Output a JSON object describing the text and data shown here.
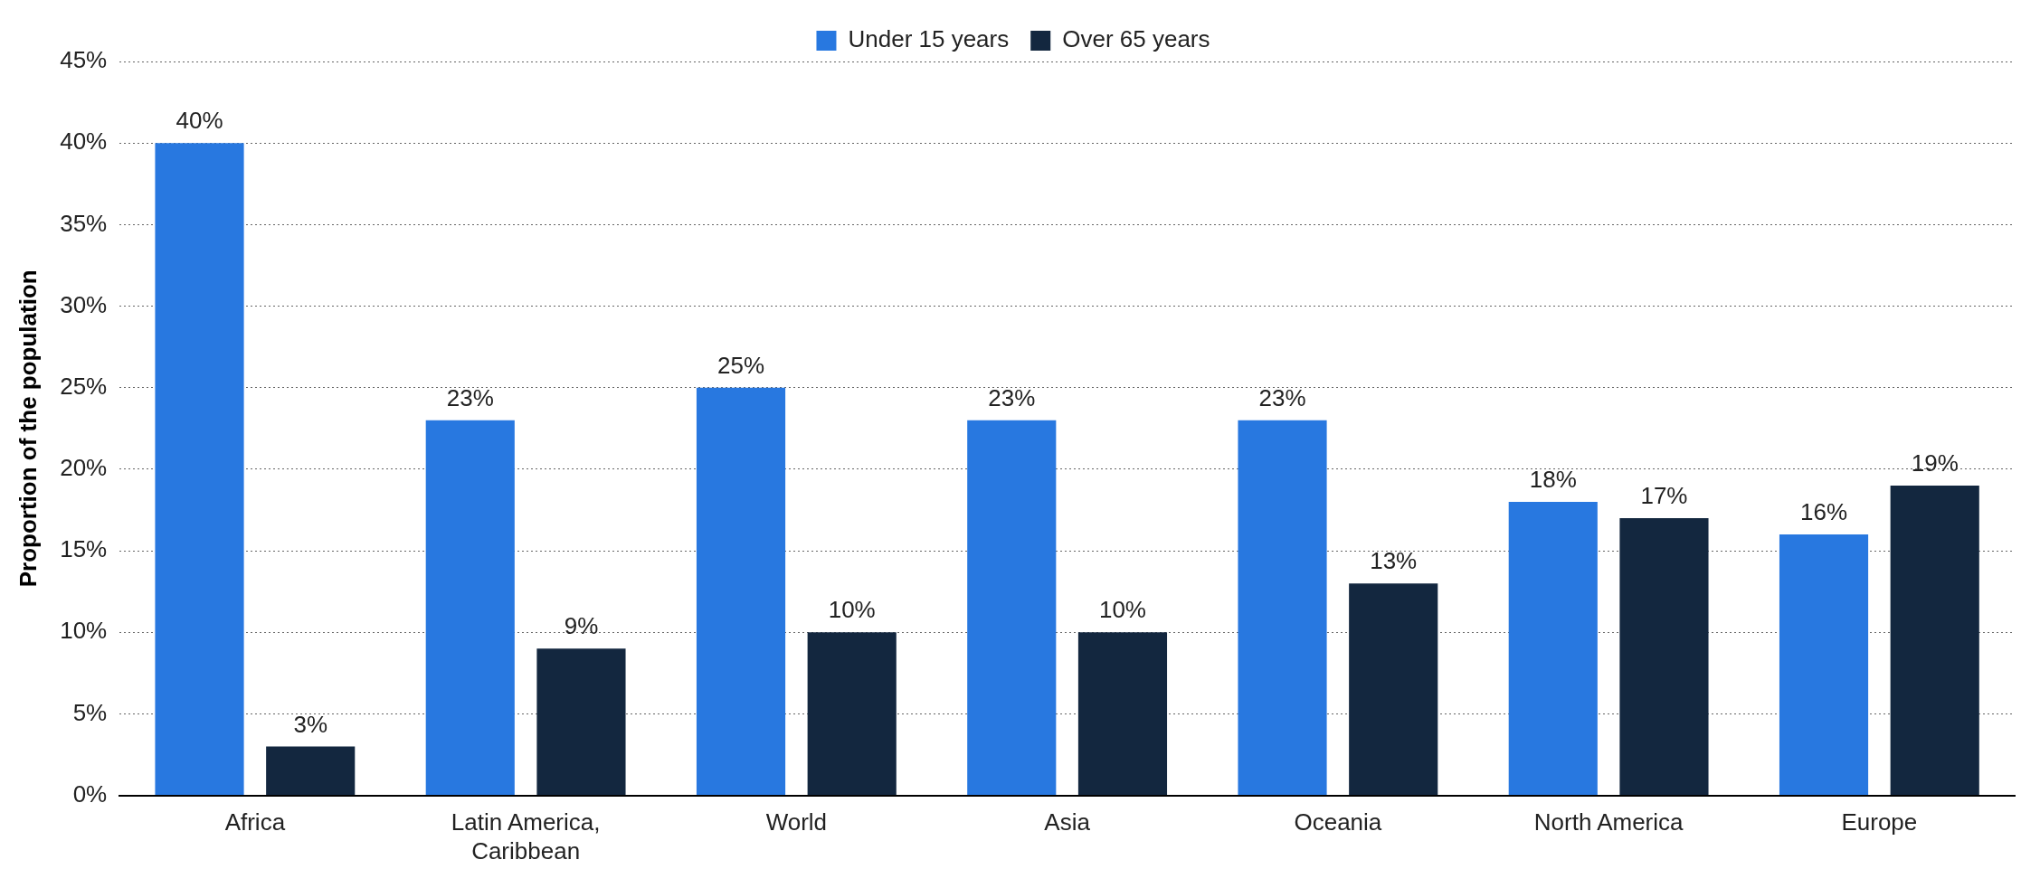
{
  "chart_data": {
    "type": "bar",
    "ylabel": "Proportion of the population",
    "categories": [
      "Africa",
      "Latin America, Caribbean",
      "World",
      "Asia",
      "Oceania",
      "North America",
      "Europe"
    ],
    "series": [
      {
        "name": "Under 15 years",
        "color": "#2878e0",
        "values": [
          40,
          23,
          25,
          23,
          23,
          18,
          16
        ],
        "value_labels": [
          "40%",
          "23%",
          "25%",
          "23%",
          "23%",
          "18%",
          "16%"
        ]
      },
      {
        "name": "Over 65 years",
        "color": "#13273f",
        "values": [
          3,
          9,
          10,
          10,
          13,
          17,
          19
        ],
        "value_labels": [
          "3%",
          "9%",
          "10%",
          "10%",
          "13%",
          "17%",
          "19%"
        ]
      }
    ],
    "ylim": [
      0,
      45
    ],
    "yticks": [
      {
        "value": 0,
        "label": "0%"
      },
      {
        "value": 5,
        "label": "5%"
      },
      {
        "value": 10,
        "label": "10%"
      },
      {
        "value": 15,
        "label": "15%"
      },
      {
        "value": 20,
        "label": "20%"
      },
      {
        "value": 25,
        "label": "25%"
      },
      {
        "value": 30,
        "label": "30%"
      },
      {
        "value": 35,
        "label": "35%"
      },
      {
        "value": 40,
        "label": "40%"
      },
      {
        "value": 45,
        "label": "45%"
      }
    ],
    "grid": "y",
    "legend": "top"
  }
}
